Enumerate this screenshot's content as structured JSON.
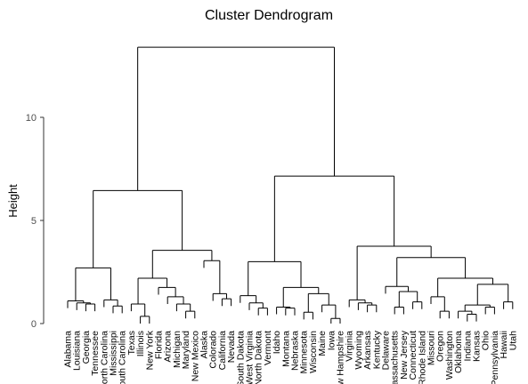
{
  "chart_data": {
    "type": "dendrogram",
    "title": "Cluster Dendrogram",
    "xlabel": "",
    "ylabel": "Height",
    "ylim": [
      0,
      14
    ],
    "yticks": [
      0,
      5,
      10
    ],
    "grid": false,
    "tree": {
      "h": 13.4,
      "children": [
        {
          "h": 6.45,
          "children": [
            {
              "h": 2.7,
              "children": [
                {
                  "h": 1.1,
                  "children": [
                    {
                      "leaf": "Alabama"
                    },
                    {
                      "h": 1.0,
                      "children": [
                        {
                          "leaf": "Louisiana"
                        },
                        {
                          "h": 0.95,
                          "children": [
                            {
                              "leaf": "Georgia"
                            },
                            {
                              "leaf": "Tennessee"
                            }
                          ]
                        }
                      ]
                    }
                  ]
                },
                {
                  "h": 1.15,
                  "children": [
                    {
                      "leaf": "North Carolina"
                    },
                    {
                      "h": 0.85,
                      "children": [
                        {
                          "leaf": "Mississippi"
                        },
                        {
                          "leaf": "South Carolina"
                        }
                      ]
                    }
                  ]
                }
              ]
            },
            {
              "h": 3.55,
              "children": [
                {
                  "h": 2.2,
                  "children": [
                    {
                      "h": 0.95,
                      "children": [
                        {
                          "leaf": "Texas"
                        },
                        {
                          "h": 0.35,
                          "children": [
                            {
                              "leaf": "Illinois"
                            },
                            {
                              "leaf": "New York"
                            }
                          ]
                        }
                      ]
                    },
                    {
                      "h": 1.75,
                      "children": [
                        {
                          "leaf": "Florida"
                        },
                        {
                          "h": 1.3,
                          "children": [
                            {
                              "leaf": "Arizona"
                            },
                            {
                              "h": 0.95,
                              "children": [
                                {
                                  "leaf": "Michigan"
                                },
                                {
                                  "h": 0.6,
                                  "children": [
                                    {
                                      "leaf": "Maryland"
                                    },
                                    {
                                      "leaf": "New Mexico"
                                    }
                                  ]
                                }
                              ]
                            }
                          ]
                        }
                      ]
                    }
                  ]
                },
                {
                  "h": 3.05,
                  "children": [
                    {
                      "leaf": "Alaska"
                    },
                    {
                      "h": 1.45,
                      "children": [
                        {
                          "leaf": "Colorado"
                        },
                        {
                          "h": 1.2,
                          "children": [
                            {
                              "leaf": "California"
                            },
                            {
                              "leaf": "Nevada"
                            }
                          ]
                        }
                      ]
                    }
                  ]
                }
              ]
            }
          ]
        },
        {
          "h": 7.15,
          "children": [
            {
              "h": 3.0,
              "children": [
                {
                  "h": 1.35,
                  "children": [
                    {
                      "leaf": "South Dakota"
                    },
                    {
                      "h": 1.0,
                      "children": [
                        {
                          "leaf": "West Virginia"
                        },
                        {
                          "h": 0.75,
                          "children": [
                            {
                              "leaf": "North Dakota"
                            },
                            {
                              "leaf": "Vermont"
                            }
                          ]
                        }
                      ]
                    }
                  ]
                },
                {
                  "h": 1.75,
                  "children": [
                    {
                      "h": 0.8,
                      "children": [
                        {
                          "leaf": "Idaho"
                        },
                        {
                          "h": 0.75,
                          "children": [
                            {
                              "leaf": "Montana"
                            },
                            {
                              "leaf": "Nebraska"
                            }
                          ]
                        }
                      ]
                    },
                    {
                      "h": 1.45,
                      "children": [
                        {
                          "h": 0.55,
                          "children": [
                            {
                              "leaf": "Minnesota"
                            },
                            {
                              "leaf": "Wisconsin"
                            }
                          ]
                        },
                        {
                          "h": 0.9,
                          "children": [
                            {
                              "leaf": "Maine"
                            },
                            {
                              "h": 0.25,
                              "children": [
                                {
                                  "leaf": "Iowa"
                                },
                                {
                                  "leaf": "New Hampshire"
                                }
                              ]
                            }
                          ]
                        }
                      ]
                    }
                  ]
                }
              ]
            },
            {
              "h": 3.75,
              "children": [
                {
                  "h": 1.15,
                  "children": [
                    {
                      "leaf": "Virginia"
                    },
                    {
                      "h": 1.0,
                      "children": [
                        {
                          "leaf": "Wyoming"
                        },
                        {
                          "h": 0.9,
                          "children": [
                            {
                              "leaf": "Arkansas"
                            },
                            {
                              "leaf": "Kentucky"
                            }
                          ]
                        }
                      ]
                    }
                  ]
                },
                {
                  "h": 3.2,
                  "children": [
                    {
                      "h": 1.8,
                      "children": [
                        {
                          "leaf": "Delaware"
                        },
                        {
                          "h": 1.55,
                          "children": [
                            {
                              "h": 0.8,
                              "children": [
                                {
                                  "leaf": "Massachusetts"
                                },
                                {
                                  "leaf": "New Jersey"
                                }
                              ]
                            },
                            {
                              "h": 1.05,
                              "children": [
                                {
                                  "leaf": "Connecticut"
                                },
                                {
                                  "leaf": "Rhode Island"
                                }
                              ]
                            }
                          ]
                        }
                      ]
                    },
                    {
                      "h": 2.2,
                      "children": [
                        {
                          "h": 1.3,
                          "children": [
                            {
                              "leaf": "Missouri"
                            },
                            {
                              "h": 0.6,
                              "children": [
                                {
                                  "leaf": "Oregon"
                                },
                                {
                                  "leaf": "Washington"
                                }
                              ]
                            }
                          ]
                        },
                        {
                          "h": 1.9,
                          "children": [
                            {
                              "h": 0.9,
                              "children": [
                                {
                                  "h": 0.6,
                                  "children": [
                                    {
                                      "leaf": "Oklahoma"
                                    },
                                    {
                                      "h": 0.45,
                                      "children": [
                                        {
                                          "leaf": "Indiana"
                                        },
                                        {
                                          "leaf": "Kansas"
                                        }
                                      ]
                                    }
                                  ]
                                },
                                {
                                  "h": 0.8,
                                  "children": [
                                    {
                                      "leaf": "Ohio"
                                    },
                                    {
                                      "leaf": "Pennsylvania"
                                    }
                                  ]
                                }
                              ]
                            },
                            {
                              "h": 1.05,
                              "children": [
                                {
                                  "leaf": "Hawaii"
                                },
                                {
                                  "leaf": "Utah"
                                }
                              ]
                            }
                          ]
                        }
                      ]
                    }
                  ]
                }
              ]
            }
          ]
        }
      ]
    }
  }
}
